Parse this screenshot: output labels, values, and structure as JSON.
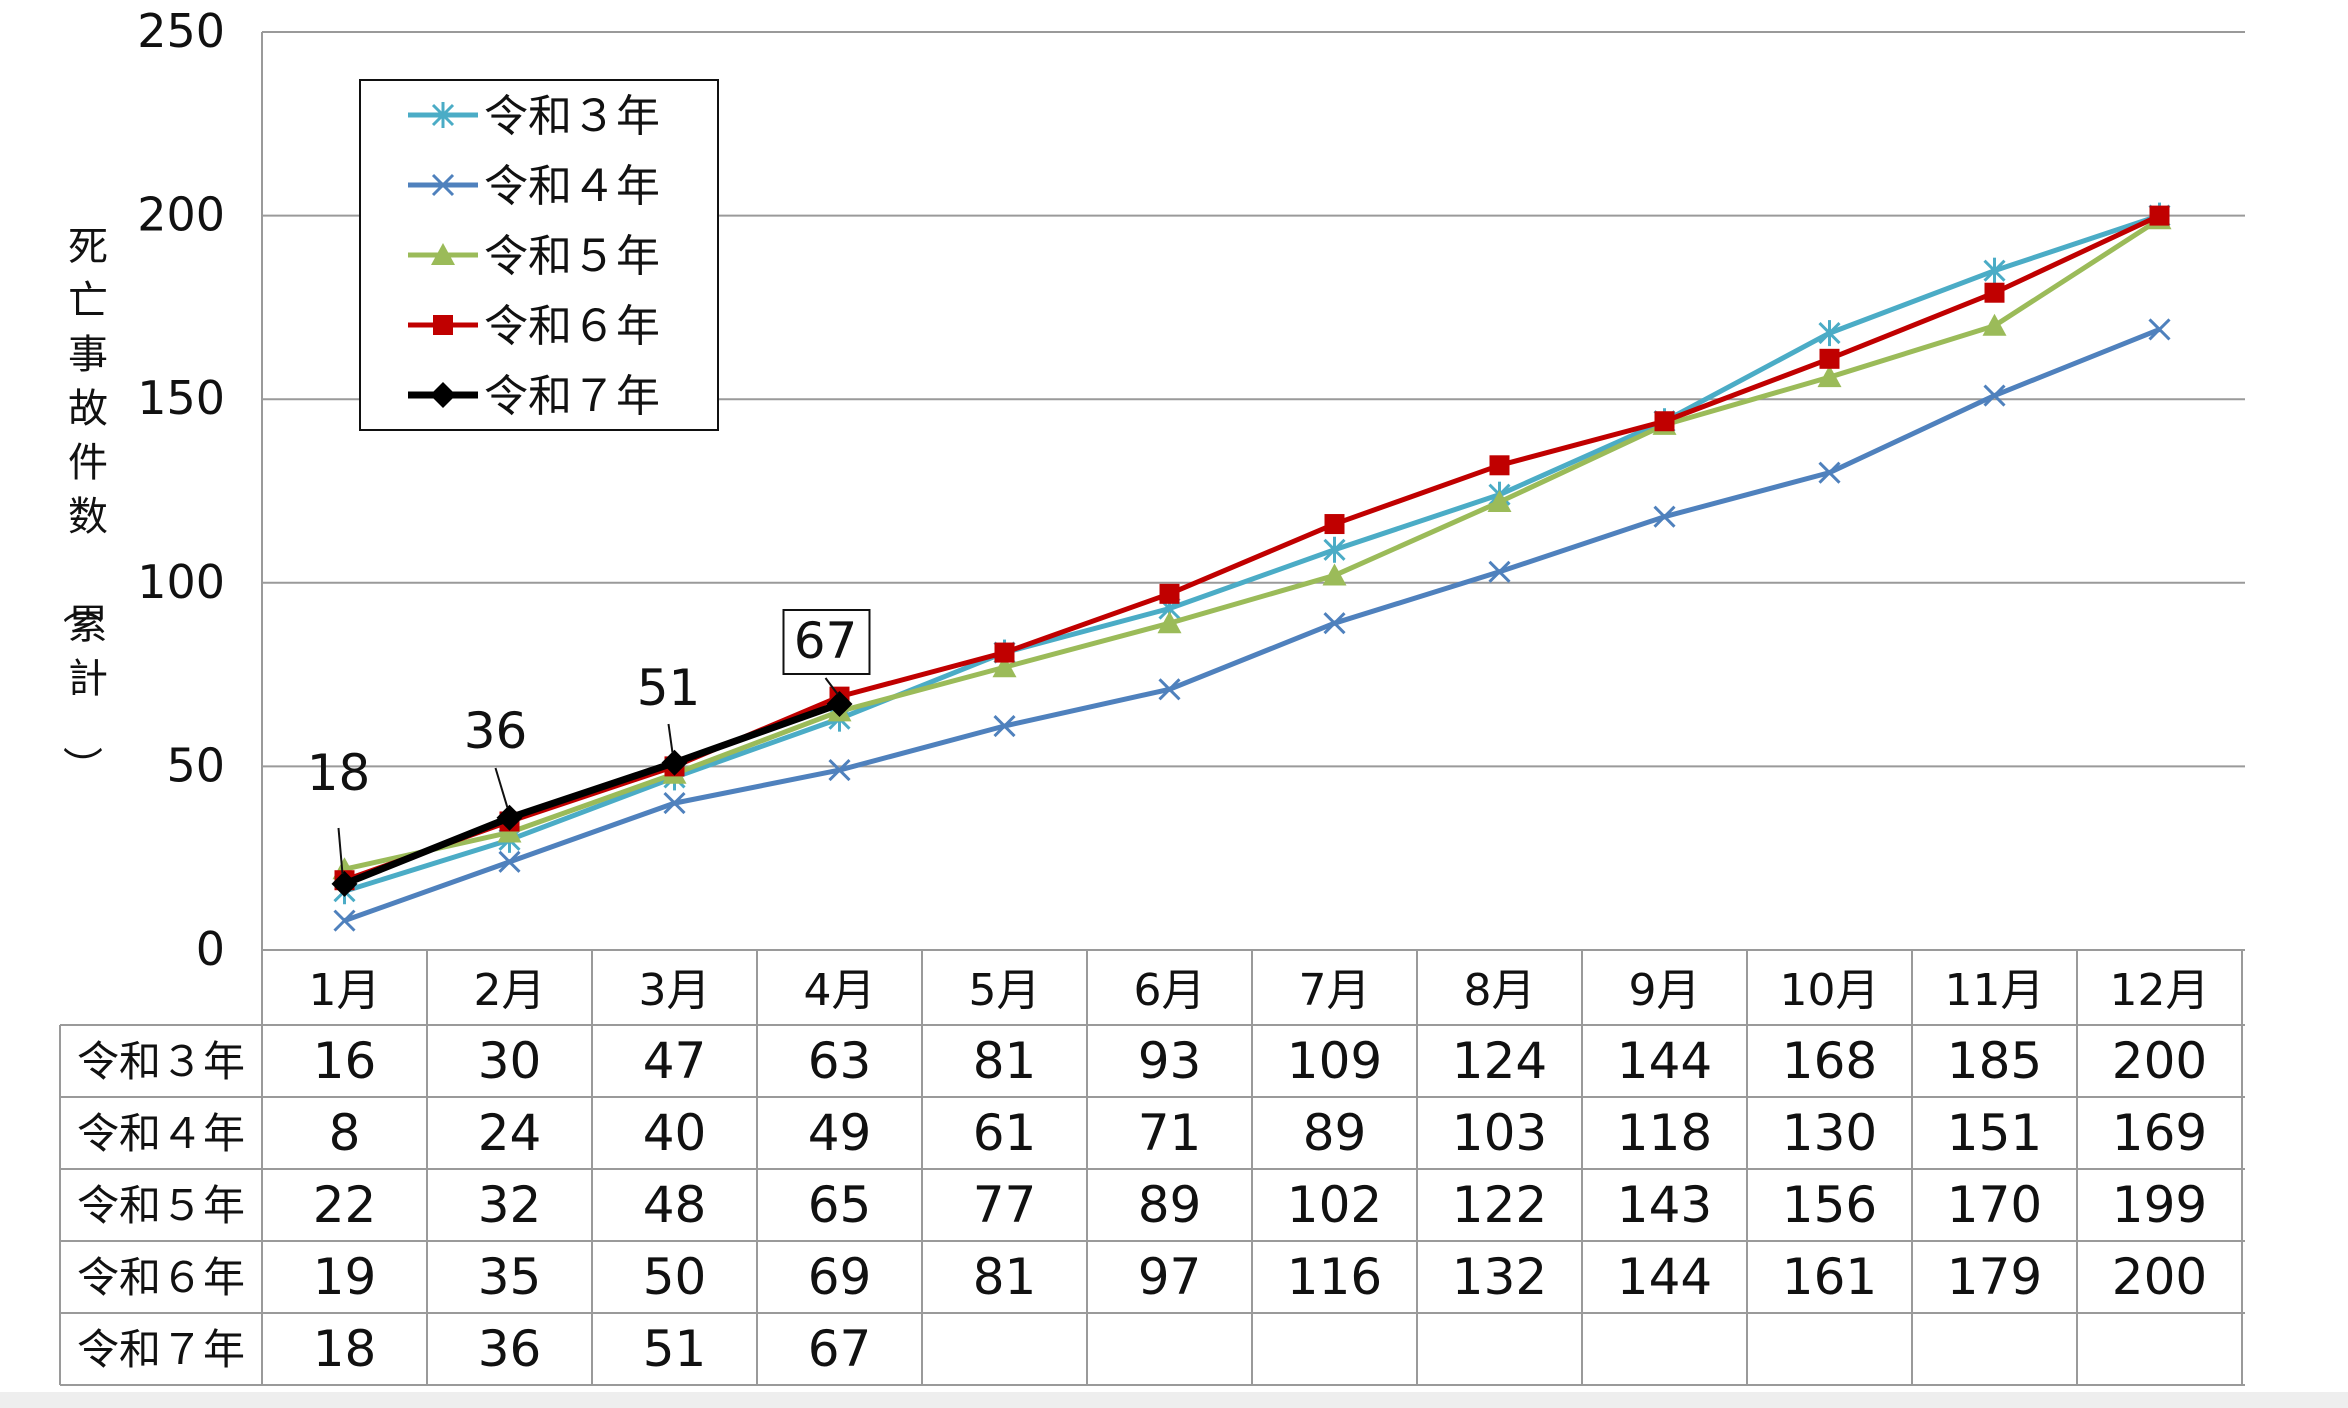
{
  "chart_data": {
    "type": "line",
    "ylabel": "死亡事故件数（累計）",
    "ylim": [
      0,
      250
    ],
    "yticks": [
      "0",
      "50",
      "100",
      "150",
      "200",
      "250"
    ],
    "grid": true,
    "legend_position": "top-left",
    "categories": [
      "1月",
      "2月",
      "3月",
      "4月",
      "5月",
      "6月",
      "7月",
      "8月",
      "9月",
      "10月",
      "11月",
      "12月"
    ],
    "series": [
      {
        "name": "令和３年",
        "color": "#4bacc6",
        "marker": "asterisk",
        "values": [
          16,
          30,
          47,
          63,
          81,
          93,
          109,
          124,
          144,
          168,
          185,
          200
        ]
      },
      {
        "name": "令和４年",
        "color": "#4f81bd",
        "marker": "x",
        "values": [
          8,
          24,
          40,
          49,
          61,
          71,
          89,
          103,
          118,
          130,
          151,
          169
        ]
      },
      {
        "name": "令和５年",
        "color": "#9bbb59",
        "marker": "triangle",
        "values": [
          22,
          32,
          48,
          65,
          77,
          89,
          102,
          122,
          143,
          156,
          170,
          199
        ]
      },
      {
        "name": "令和６年",
        "color": "#c00000",
        "marker": "square",
        "values": [
          19,
          35,
          50,
          69,
          81,
          97,
          116,
          132,
          144,
          161,
          179,
          200
        ]
      },
      {
        "name": "令和７年",
        "color": "#000000",
        "marker": "diamond",
        "values": [
          18,
          36,
          51,
          67,
          null,
          null,
          null,
          null,
          null,
          null,
          null,
          null
        ]
      }
    ],
    "annotations": [
      {
        "text": "18",
        "series": "令和７年",
        "index": 0
      },
      {
        "text": "36",
        "series": "令和７年",
        "index": 1
      },
      {
        "text": "51",
        "series": "令和７年",
        "index": 2
      },
      {
        "text": "67",
        "series": "令和７年",
        "index": 3,
        "boxed": true
      }
    ]
  }
}
